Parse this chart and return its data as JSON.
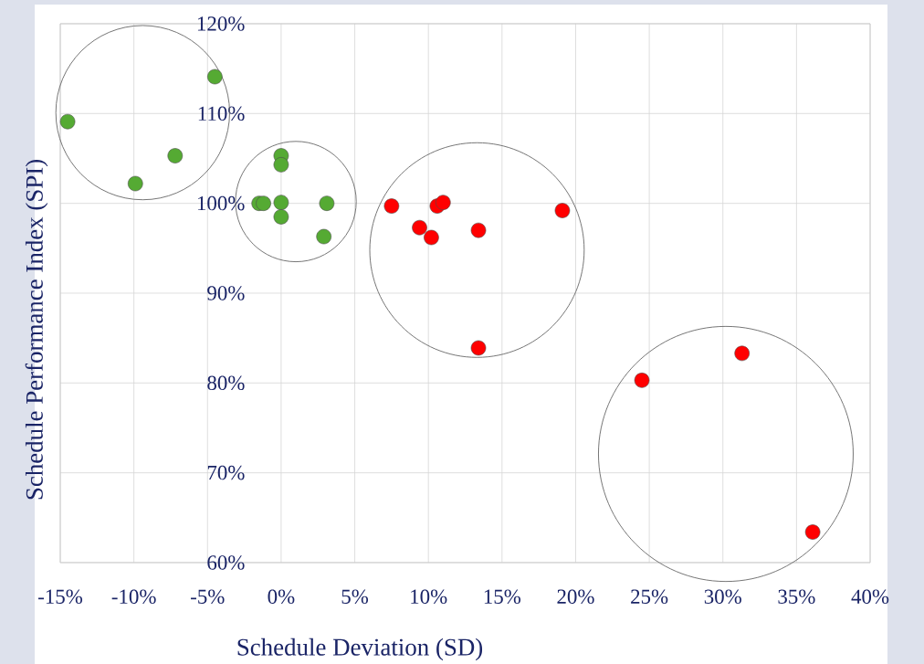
{
  "chart_data": {
    "type": "scatter",
    "xlabel": "Schedule Deviation (SD)",
    "ylabel": "Schedule Performance Index (SPI)",
    "series": [
      {
        "color": "#55aa33",
        "x": [
          -14.5,
          -4.5,
          -7.2,
          -9.9,
          0,
          0,
          -1.5,
          -1.2,
          0,
          0,
          3.1,
          2.9
        ],
        "values": [
          109.1,
          114.1,
          105.3,
          102.2,
          105.3,
          104.3,
          100,
          100,
          100.1,
          98.5,
          100.0,
          96.3
        ]
      },
      {
        "color": "#ff0000",
        "x": [
          7.5,
          9.4,
          10.2,
          10.6,
          11.0,
          13.4,
          19.1,
          13.4,
          24.5,
          31.3,
          36.1
        ],
        "values": [
          99.7,
          97.3,
          96.2,
          99.7,
          100.1,
          97.0,
          99.2,
          83.9,
          80.3,
          83.3,
          63.4
        ]
      }
    ],
    "xlim": [
      -15,
      40
    ],
    "ylim": [
      60,
      120
    ],
    "xticks": [
      {
        "value": -15,
        "label": "-15%"
      },
      {
        "value": -10,
        "label": "-10%"
      },
      {
        "value": -5,
        "label": "-5%"
      },
      {
        "value": 0,
        "label": "0%"
      },
      {
        "value": 5,
        "label": "5%"
      },
      {
        "value": 10,
        "label": "10%"
      },
      {
        "value": 15,
        "label": "15%"
      },
      {
        "value": 20,
        "label": "20%"
      },
      {
        "value": 25,
        "label": "25%"
      },
      {
        "value": 30,
        "label": "30%"
      },
      {
        "value": 35,
        "label": "35%"
      },
      {
        "value": 40,
        "label": "40%"
      }
    ],
    "yticks": [
      {
        "value": 60,
        "label": "60%"
      },
      {
        "value": 70,
        "label": "70%"
      },
      {
        "value": 80,
        "label": "80%"
      },
      {
        "value": 90,
        "label": "90%"
      },
      {
        "value": 100,
        "label": "100%"
      },
      {
        "value": 110,
        "label": "110%"
      },
      {
        "value": 120,
        "label": "120%"
      }
    ],
    "grid": true
  }
}
